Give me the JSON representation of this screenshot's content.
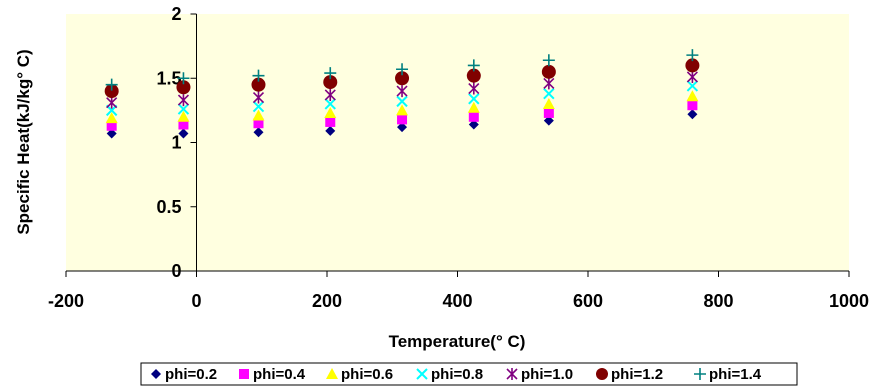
{
  "chart_data": {
    "type": "scatter",
    "xlabel": "Temperature(° C)",
    "ylabel": "Specific Heat(kJ/kg° C)",
    "xlim": [
      -200,
      1000
    ],
    "ylim": [
      0,
      2
    ],
    "x_ticks": [
      -200,
      0,
      200,
      400,
      600,
      800,
      1000
    ],
    "y_ticks": [
      0,
      0.5,
      1,
      1.5,
      2
    ],
    "y_tick_labels": [
      "0",
      "0.5",
      "1",
      "1.5",
      "2"
    ],
    "grid": false,
    "plot_background": "#FFFFE0",
    "legend_position": "bottom",
    "x": [
      -130,
      -20,
      95,
      205,
      315,
      425,
      540,
      760
    ],
    "series": [
      {
        "name": "phi=0.2",
        "marker": "diamond",
        "color": "#000080",
        "values": [
          1.07,
          1.07,
          1.08,
          1.09,
          1.12,
          1.14,
          1.17,
          1.22
        ]
      },
      {
        "name": "phi=0.4",
        "marker": "square",
        "color": "#FF00FF",
        "values": [
          1.13,
          1.14,
          1.15,
          1.16,
          1.18,
          1.2,
          1.23,
          1.29
        ]
      },
      {
        "name": "phi=0.6",
        "marker": "triangle",
        "color": "#FFFF00",
        "values": [
          1.19,
          1.2,
          1.21,
          1.23,
          1.25,
          1.27,
          1.3,
          1.36
        ]
      },
      {
        "name": "phi=0.8",
        "marker": "x",
        "color": "#00FFFF",
        "values": [
          1.25,
          1.26,
          1.28,
          1.3,
          1.32,
          1.34,
          1.38,
          1.44
        ]
      },
      {
        "name": "phi=1.0",
        "marker": "star",
        "color": "#800080",
        "values": [
          1.31,
          1.33,
          1.35,
          1.37,
          1.4,
          1.42,
          1.46,
          1.51
        ]
      },
      {
        "name": "phi=1.2",
        "marker": "circle",
        "color": "#800000",
        "values": [
          1.4,
          1.43,
          1.45,
          1.47,
          1.5,
          1.52,
          1.55,
          1.6
        ]
      },
      {
        "name": "phi=1.4",
        "marker": "plus",
        "color": "#008080",
        "values": [
          1.45,
          1.5,
          1.52,
          1.54,
          1.57,
          1.6,
          1.64,
          1.68
        ]
      }
    ]
  }
}
